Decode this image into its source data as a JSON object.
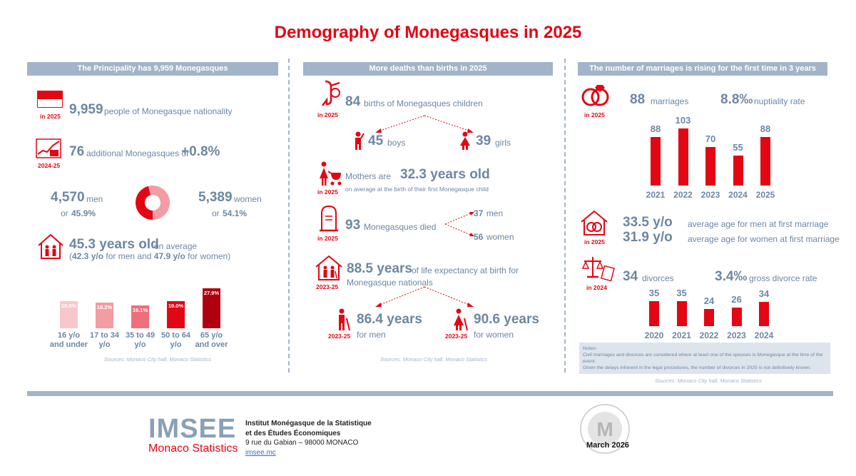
{
  "title": "Demography of Monegasques in 2025",
  "col1": {
    "header": "The Principality has 9,959 Monegasques",
    "population": {
      "tag": "in 2025",
      "value": "9,959",
      "text": "people of Monegasque nationality"
    },
    "change": {
      "tag": "2024-25",
      "value": "76",
      "text": "additional Monegasques or",
      "pct": "+0.8%"
    },
    "men": {
      "value": "4,570",
      "label": "men",
      "pct_prefix": "or",
      "pct": "45.9%"
    },
    "women": {
      "value": "5,389",
      "label": "women",
      "pct_prefix": "or",
      "pct": "54.1%"
    },
    "avg_age": {
      "value": "45.3 years old",
      "text": "on average",
      "detail_1": "(",
      "men_age": "42.3 y/o",
      "detail_2": "for men and",
      "women_age": "47.9 y/o",
      "detail_3": "for women)"
    },
    "source": "Sources: Monaco City hall, Monaco Statistics"
  },
  "col2": {
    "header": "More deaths than births in 2025",
    "births": {
      "tag": "in 2025",
      "value": "84",
      "text": "births of Monegasques children"
    },
    "boys": {
      "value": "45",
      "label": "boys"
    },
    "girls": {
      "value": "39",
      "label": "girls"
    },
    "mothers": {
      "tag": "in 2025",
      "text": "Mothers are",
      "value": "32.3 years old",
      "detail": "on average at the birth of their first Monegasque child"
    },
    "deaths": {
      "tag": "in 2025",
      "value": "93",
      "text": "Monegasques died",
      "men_value": "37",
      "men_label": "men",
      "women_value": "56",
      "women_label": "women"
    },
    "life_exp": {
      "tag": "2023-25",
      "value": "88.5 years",
      "text_1": "of life expectancy at birth for",
      "text_2": "Monegasque nationals"
    },
    "men_le": {
      "tag": "2023-25",
      "value": "86.4 years",
      "label": "for men"
    },
    "women_le": {
      "tag": "2023-25",
      "value": "90.6 years",
      "label": "for women"
    },
    "source": "Sources: Monaco City hall, Monaco Statistics"
  },
  "col3": {
    "header": "The number of marriages is rising for the first time in 3 years",
    "marriages": {
      "tag": "in 2025",
      "value": "88",
      "label": "marriages",
      "rate": "8.8‰",
      "rate_label": "nuptiality rate"
    },
    "age_marriage": {
      "tag": "in 2025",
      "men_value": "33.5 y/o",
      "men_text": "average age for men at first marriage",
      "women_value": "31.9 y/o",
      "women_text": "average age for women at first marriage"
    },
    "divorces": {
      "tag": "in 2024",
      "value": "34",
      "label": "divorces",
      "rate": "3.4‰",
      "rate_label": "gross divorce rate"
    },
    "notes_title": "Notes:",
    "note_1": "Civil marriages and divorces are considered where at least one of the spouses is Monegasque at the time of the event.",
    "note_2": "Given the delays inherent in the legal procedures, the number of divorces in 2025 is not definitively known.",
    "source": "Sources: Monaco City hall, Monaco Statistics"
  },
  "footer": {
    "logo_text": "IMSEE",
    "logo_sub": "Monaco Statistics",
    "org_line1": "Institut Monégasque de la Statistique",
    "org_line2": "et des Études Économiques",
    "address": "9 rue du Gabian – 98000 MONACO",
    "website": "imsee.mc",
    "date": "March 2026"
  },
  "chart_data": [
    {
      "type": "bar",
      "categories": [
        "16 y/o and under",
        "17 to 34 y/o",
        "35 to 49 y/o",
        "50 to 64 y/o",
        "65 y/o and over"
      ],
      "cat_lines": [
        [
          "16 y/o",
          "and under"
        ],
        [
          "17 to 34",
          "y/o"
        ],
        [
          "35 to 49",
          "y/o"
        ],
        [
          "50 to 64",
          "y/o"
        ],
        [
          "65 y/o",
          "and over"
        ]
      ],
      "values": [
        18.8,
        18.2,
        16.1,
        19.0,
        27.9
      ],
      "labels": [
        "18.8%",
        "18.2%",
        "16.1%",
        "19.0%",
        "27.9%"
      ],
      "colors": [
        "#f8c7cc",
        "#f39ca4",
        "#ee6f7b",
        "#e30613",
        "#b00010"
      ],
      "ylim": [
        0,
        30
      ]
    },
    {
      "type": "bar",
      "categories": [
        "2021",
        "2022",
        "2023",
        "2024",
        "2025"
      ],
      "values": [
        88,
        103,
        70,
        55,
        88
      ],
      "ylim": [
        0,
        110
      ],
      "color": "#e30613"
    },
    {
      "type": "bar",
      "categories": [
        "2020",
        "2021",
        "2022",
        "2023",
        "2024"
      ],
      "values": [
        35,
        35,
        24,
        26,
        34
      ],
      "ylim": [
        0,
        40
      ],
      "color": "#e30613"
    },
    {
      "type": "pie",
      "categories": [
        "men",
        "women"
      ],
      "values": [
        45.9,
        54.1
      ],
      "colors": [
        "#e30613",
        "#f39ca4"
      ]
    }
  ]
}
